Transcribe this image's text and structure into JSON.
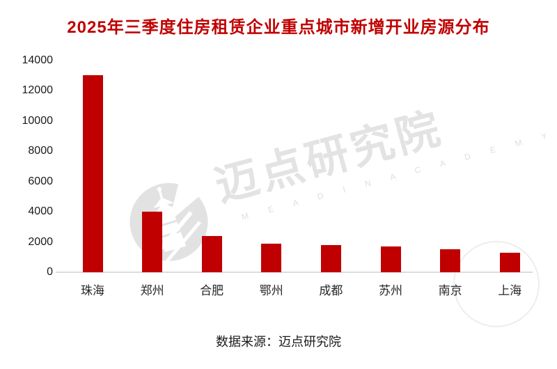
{
  "title": {
    "text": "2025年三季度住房租赁企业重点城市新增开业房源分布",
    "color": "#C00000"
  },
  "source": {
    "text": "数据来源：迈点研究院"
  },
  "watermark": {
    "cn": "迈点研究院",
    "en": "M E A D I N   A C A D E M Y",
    "logo": "meadin-pagoda-circle-icon",
    "color": "#E3E3E3"
  },
  "colors": {
    "bar": "#C00000",
    "axis_line": "#DBDBDB",
    "tick_label": "#1A1A1A",
    "category_label": "#262626",
    "watermark_gray": "#E3E3E3"
  },
  "chart_data": {
    "type": "bar",
    "title": "2025年三季度住房租赁企业重点城市新增开业房源分布",
    "categories": [
      "珠海",
      "郑州",
      "合肥",
      "鄂州",
      "成都",
      "苏州",
      "南京",
      "上海"
    ],
    "values": [
      13000,
      4000,
      2400,
      1900,
      1800,
      1700,
      1500,
      1300
    ],
    "xlabel": "",
    "ylabel": "",
    "ylim": [
      0,
      14000
    ],
    "yticks": [
      0,
      2000,
      4000,
      6000,
      8000,
      10000,
      12000,
      14000
    ],
    "grid": false,
    "legend": null,
    "bar_color": "#C00000",
    "source": "数据来源：迈点研究院"
  }
}
